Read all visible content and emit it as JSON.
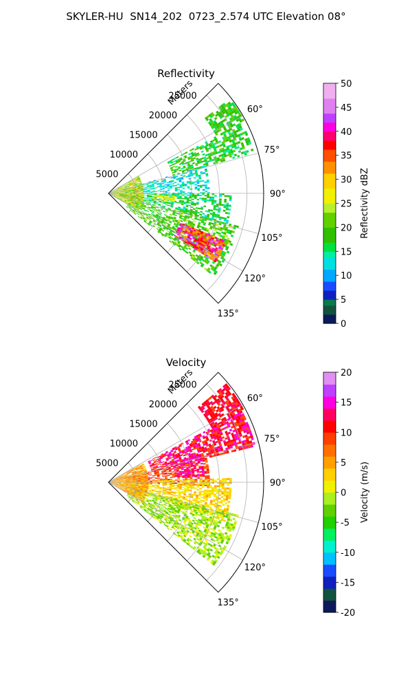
{
  "figure": {
    "title": "SKYLER-HU  SN14_202  0723_2.574 UTC Elevation 08°"
  },
  "chart_data": [
    {
      "type": "heatmap",
      "subtype": "polar-sector",
      "title": "Reflectivity",
      "range_label": "Meters",
      "azimuth_range_deg": [
        45,
        135
      ],
      "azimuth_ticks": [
        "60°",
        "75°",
        "90°",
        "105°",
        "120°",
        "135°"
      ],
      "range_max_m": 28000,
      "range_ticks": [
        5000,
        10000,
        15000,
        20000,
        25000
      ],
      "grid": true,
      "colorbar": {
        "label": "Reflectivity dBZ",
        "min": 0,
        "max": 50,
        "ticks": [
          0,
          5,
          10,
          15,
          20,
          25,
          30,
          35,
          40,
          45,
          50
        ],
        "stops": [
          {
            "v": 0,
            "c": "#0d1a5a"
          },
          {
            "v": 2,
            "c": "#13523f"
          },
          {
            "v": 4,
            "c": "#0a7a4a"
          },
          {
            "v": 5,
            "c": "#1020c0"
          },
          {
            "v": 7,
            "c": "#1a4dff"
          },
          {
            "v": 9,
            "c": "#00a8ff"
          },
          {
            "v": 11,
            "c": "#00e0e0"
          },
          {
            "v": 14,
            "c": "#00f0a0"
          },
          {
            "v": 15,
            "c": "#00e040"
          },
          {
            "v": 17,
            "c": "#30c000"
          },
          {
            "v": 20,
            "c": "#60d000"
          },
          {
            "v": 23,
            "c": "#b8f030"
          },
          {
            "v": 25,
            "c": "#f0f000"
          },
          {
            "v": 28,
            "c": "#ffd000"
          },
          {
            "v": 31,
            "c": "#ff9000"
          },
          {
            "v": 34,
            "c": "#ff5000"
          },
          {
            "v": 36,
            "c": "#ff0000"
          },
          {
            "v": 38,
            "c": "#ff0070"
          },
          {
            "v": 40,
            "c": "#ff00e0"
          },
          {
            "v": 42,
            "c": "#c040ff"
          },
          {
            "v": 44,
            "c": "#e080f0"
          },
          {
            "v": 47,
            "c": "#f0b0f0"
          },
          {
            "v": 50,
            "c": "#fff0ff"
          }
        ]
      },
      "echo_regions": [
        {
          "az": [
            52,
            62
          ],
          "r": [
            22000,
            27500
          ],
          "v": [
            15,
            22
          ],
          "density": 0.7
        },
        {
          "az": [
            62,
            74
          ],
          "r": [
            12000,
            27000
          ],
          "v": [
            14,
            22
          ],
          "density": 0.55
        },
        {
          "az": [
            74,
            90
          ],
          "r": [
            3000,
            18000
          ],
          "v": [
            10,
            16
          ],
          "density": 0.45
        },
        {
          "az": [
            90,
            104
          ],
          "r": [
            2000,
            22000
          ],
          "v": [
            12,
            20
          ],
          "density": 0.55
        },
        {
          "az": [
            104,
            128
          ],
          "r": [
            4000,
            24000
          ],
          "v": [
            15,
            24
          ],
          "density": 0.55
        },
        {
          "az": [
            60,
            120
          ],
          "r": [
            0,
            6000
          ],
          "v": [
            18,
            32
          ],
          "density": 0.85
        },
        {
          "az": [
            92,
            97
          ],
          "r": [
            8000,
            12000
          ],
          "v": [
            24,
            28
          ],
          "density": 0.8
        },
        {
          "az": [
            112,
            122
          ],
          "r": [
            14000,
            23000
          ],
          "v": [
            30,
            45
          ],
          "density": 0.85
        }
      ]
    },
    {
      "type": "heatmap",
      "subtype": "polar-sector",
      "title": "Velocity",
      "range_label": "Meters",
      "azimuth_range_deg": [
        45,
        135
      ],
      "azimuth_ticks": [
        "60°",
        "75°",
        "90°",
        "105°",
        "120°",
        "135°"
      ],
      "range_max_m": 28000,
      "range_ticks": [
        5000,
        10000,
        15000,
        20000,
        25000
      ],
      "grid": true,
      "colorbar": {
        "label": "Velocity (m/s)",
        "min": -20,
        "max": 20,
        "ticks": [
          -20,
          -15,
          -10,
          -5,
          0,
          5,
          10,
          15,
          20
        ],
        "stops": [
          {
            "v": -20,
            "c": "#0d1a5a"
          },
          {
            "v": -18,
            "c": "#13523f"
          },
          {
            "v": -16,
            "c": "#1020c0"
          },
          {
            "v": -14,
            "c": "#1a4dff"
          },
          {
            "v": -12,
            "c": "#00c0ff"
          },
          {
            "v": -10,
            "c": "#00f0d0"
          },
          {
            "v": -8,
            "c": "#00f060"
          },
          {
            "v": -6,
            "c": "#20d000"
          },
          {
            "v": -4,
            "c": "#60d000"
          },
          {
            "v": -2,
            "c": "#a8f020"
          },
          {
            "v": 0,
            "c": "#f0f000"
          },
          {
            "v": 2,
            "c": "#ffd000"
          },
          {
            "v": 4,
            "c": "#ffa000"
          },
          {
            "v": 6,
            "c": "#ff7000"
          },
          {
            "v": 8,
            "c": "#ff4000"
          },
          {
            "v": 10,
            "c": "#ff0000"
          },
          {
            "v": 12,
            "c": "#ff0060"
          },
          {
            "v": 14,
            "c": "#ff00e0"
          },
          {
            "v": 16,
            "c": "#c040ff"
          },
          {
            "v": 18,
            "c": "#e090f0"
          },
          {
            "v": 20,
            "c": "#fff0ff"
          }
        ]
      },
      "echo_regions": [
        {
          "az": [
            50,
            62
          ],
          "r": [
            21000,
            27500
          ],
          "v": [
            9,
            14
          ],
          "density": 0.75
        },
        {
          "az": [
            62,
            76
          ],
          "r": [
            8000,
            27000
          ],
          "v": [
            8,
            16
          ],
          "density": 0.7
        },
        {
          "az": [
            76,
            92
          ],
          "r": [
            3000,
            18000
          ],
          "v": [
            6,
            12
          ],
          "density": 0.6
        },
        {
          "az": [
            72,
            86
          ],
          "r": [
            12000,
            17000
          ],
          "v": [
            12,
            16
          ],
          "density": 0.5
        },
        {
          "az": [
            88,
            108
          ],
          "r": [
            2000,
            22000
          ],
          "v": [
            0,
            5
          ],
          "density": 0.65
        },
        {
          "az": [
            104,
            128
          ],
          "r": [
            4000,
            24000
          ],
          "v": [
            -4,
            1
          ],
          "density": 0.6
        },
        {
          "az": [
            60,
            120
          ],
          "r": [
            0,
            7000
          ],
          "v": [
            2,
            8
          ],
          "density": 0.85
        }
      ]
    }
  ]
}
